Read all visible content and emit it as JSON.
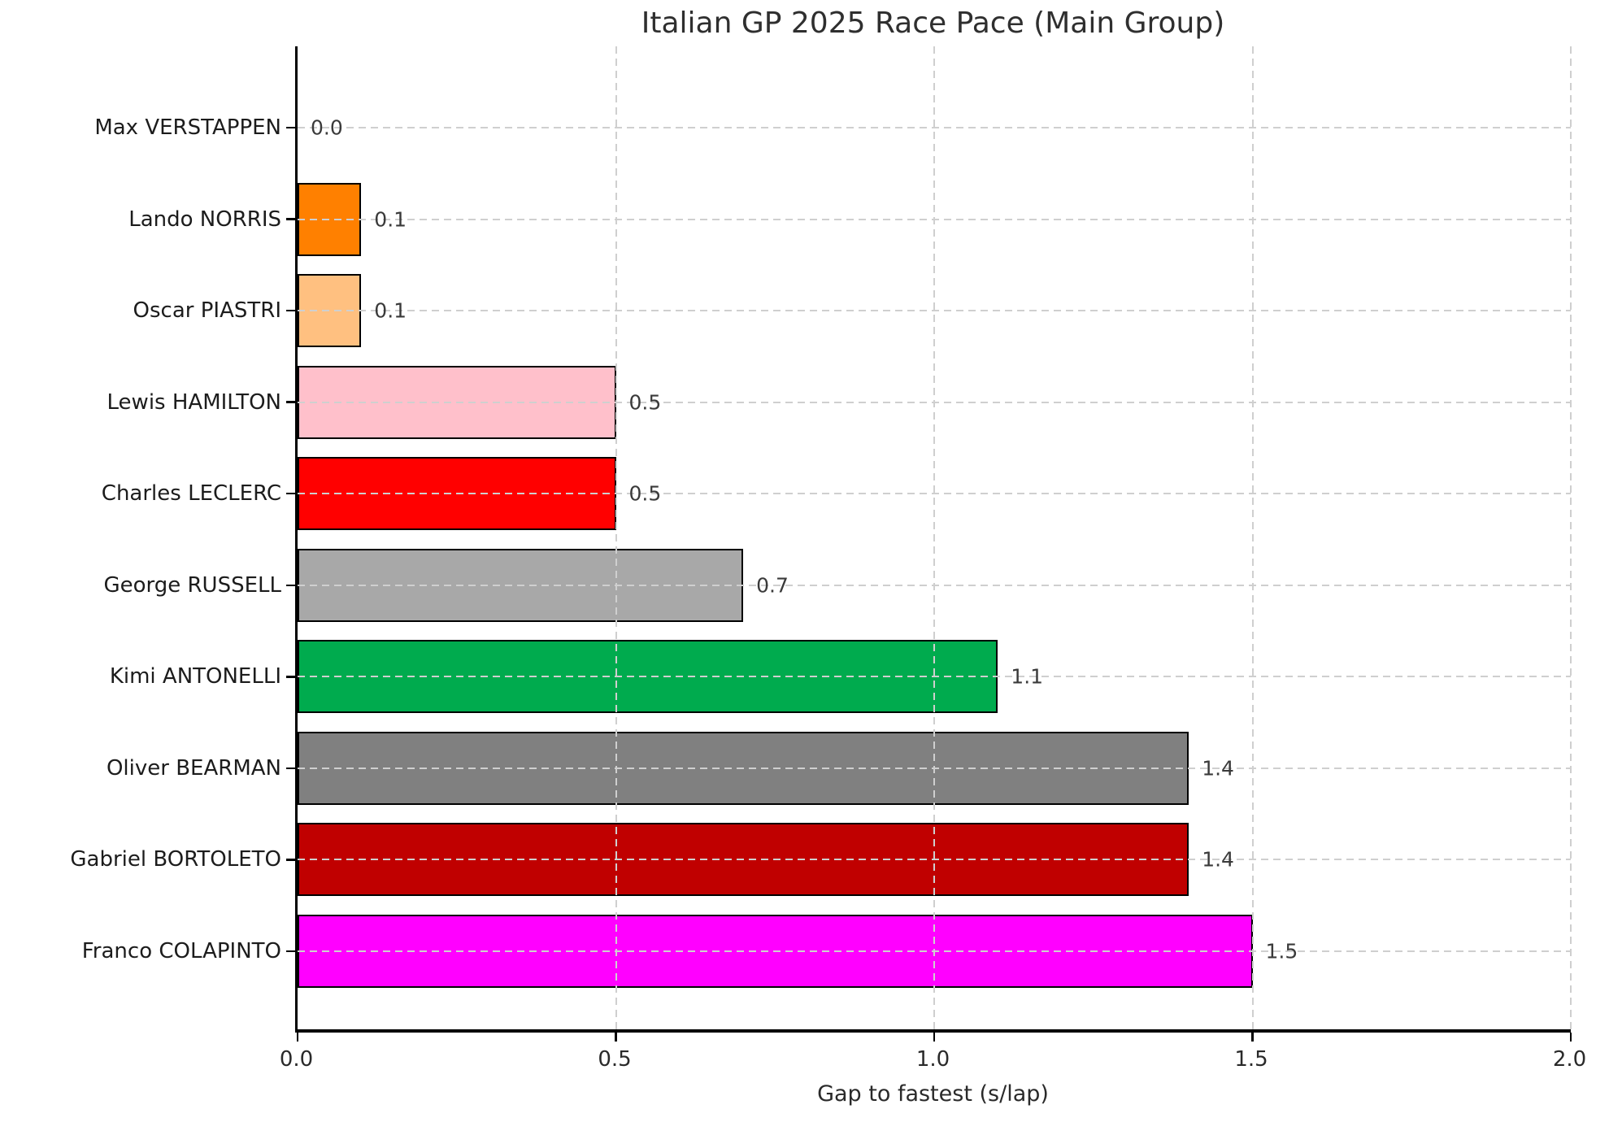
{
  "chart_data": {
    "type": "bar",
    "orientation": "horizontal",
    "title": "Italian GP 2025 Race Pace (Main Group)",
    "xlabel": "Gap to fastest (s/lap)",
    "ylabel": "",
    "xlim": [
      0.0,
      2.0
    ],
    "x_ticks": [
      0.0,
      0.5,
      1.0,
      1.5,
      2.0
    ],
    "x_tick_labels": [
      "0.0",
      "0.5",
      "1.0",
      "1.5",
      "2.0"
    ],
    "grid": true,
    "grid_style": "dashed",
    "legend": "none",
    "categories": [
      "Max VERSTAPPEN",
      "Lando NORRIS",
      "Oscar PIASTRI",
      "Lewis HAMILTON",
      "Charles LECLERC",
      "George RUSSELL",
      "Kimi ANTONELLI",
      "Oliver BEARMAN",
      "Gabriel BORTOLETO",
      "Franco COLAPINTO"
    ],
    "values": [
      0.0,
      0.1,
      0.1,
      0.5,
      0.5,
      0.7,
      1.1,
      1.4,
      1.4,
      1.5
    ],
    "value_labels": [
      "0.0",
      "0.1",
      "0.1",
      "0.5",
      "0.5",
      "0.7",
      "1.1",
      "1.4",
      "1.4",
      "1.5"
    ],
    "bar_colors": [
      null,
      "#FF8000",
      "#FFC080",
      "#FFC0CB",
      "#FF0000",
      "#A8A8A8",
      "#00AB4E",
      "#808080",
      "#C00000",
      "#FF00FF"
    ],
    "bar_edge_color": "#000000",
    "grid_color": "#CFCFCF",
    "spine_color": "#000000",
    "background_color": "#FFFFFF",
    "text_color": "#2A2A2A"
  }
}
